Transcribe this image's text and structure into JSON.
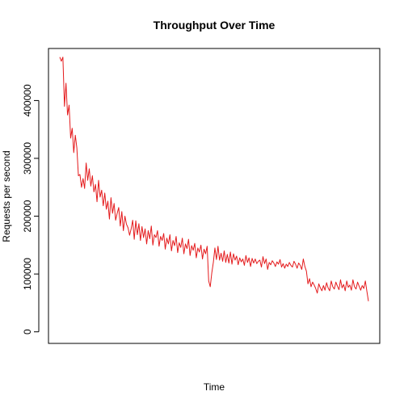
{
  "chart_data": {
    "type": "line",
    "title": "Throughput Over Time",
    "xlabel": "Time",
    "ylabel": "Requests per second",
    "ylim": [
      -20000,
      490000
    ],
    "y_ticks": [
      0,
      100000,
      200000,
      300000,
      400000
    ],
    "y_tick_labels": [
      "0",
      "100000",
      "200000",
      "300000",
      "400000"
    ],
    "x_ticks_shown": false,
    "grid": false,
    "series": [
      {
        "color": "#e41a1c",
        "x": [
          1,
          2,
          3,
          4,
          5,
          6,
          7,
          8,
          9,
          10,
          11,
          12,
          13,
          14,
          15,
          16,
          17,
          18,
          19,
          20,
          21,
          22,
          23,
          24,
          25,
          26,
          27,
          28,
          29,
          30,
          31,
          32,
          33,
          34,
          35,
          36,
          37,
          38,
          39,
          40,
          41,
          42,
          43,
          44,
          45,
          46,
          47,
          48,
          49,
          50,
          51,
          52,
          53,
          54,
          55,
          56,
          57,
          58,
          59,
          60,
          61,
          62,
          63,
          64,
          65,
          66,
          67,
          68,
          69,
          70,
          71,
          72,
          73,
          74,
          75,
          76,
          77,
          78,
          79,
          80,
          81,
          82,
          83,
          84,
          85,
          86,
          87,
          88,
          89,
          90,
          91,
          92,
          93,
          94,
          95,
          96,
          97,
          98,
          99,
          100,
          101,
          102,
          103,
          104,
          105,
          106,
          107,
          108,
          109,
          110,
          111,
          112,
          113,
          114,
          115,
          116,
          117,
          118,
          119,
          120,
          121,
          122,
          123,
          124,
          125,
          126,
          127,
          128,
          129,
          130,
          131,
          132,
          133,
          134,
          135,
          136,
          137,
          138,
          139,
          140,
          141,
          142,
          143,
          144,
          145,
          146,
          147,
          148,
          149,
          150,
          151,
          152,
          153,
          154,
          155,
          156,
          157,
          158,
          159,
          160,
          161,
          162,
          163,
          164,
          165,
          166,
          167,
          168,
          169,
          170,
          171,
          172,
          173,
          174,
          175,
          176,
          177,
          178,
          179,
          180,
          181,
          182,
          183,
          184,
          185,
          186,
          187,
          188,
          189,
          190,
          191,
          192,
          193,
          194,
          195,
          196,
          197,
          198,
          199,
          200
        ],
        "values": [
          475000,
          468000,
          475000,
          390000,
          430000,
          375000,
          392000,
          335000,
          352000,
          310000,
          340000,
          318000,
          270000,
          272000,
          250000,
          265000,
          248000,
          292000,
          262000,
          282000,
          252000,
          270000,
          242000,
          255000,
          225000,
          262000,
          233000,
          245000,
          218000,
          240000,
          212000,
          226000,
          195000,
          232000,
          205000,
          222000,
          193000,
          205000,
          215000,
          183000,
          208000,
          175000,
          200000,
          186000,
          180000,
          167000,
          178000,
          193000,
          160000,
          192000,
          168000,
          187000,
          158000,
          182000,
          163000,
          178000,
          152000,
          175000,
          161000,
          183000,
          150000,
          168000,
          163000,
          175000,
          148000,
          165000,
          158000,
          170000,
          143000,
          162000,
          152000,
          168000,
          140000,
          158000,
          149000,
          165000,
          137000,
          154000,
          146000,
          162000,
          135000,
          152000,
          144000,
          160000,
          132000,
          149000,
          141000,
          153000,
          128000,
          145000,
          138000,
          150000,
          126000,
          143000,
          135000,
          148000,
          88000,
          78000,
          102000,
          120000,
          145000,
          125000,
          148000,
          124000,
          136000,
          122000,
          140000,
          120000,
          134000,
          119000,
          138000,
          117000,
          135000,
          124000,
          131000,
          116000,
          128000,
          121000,
          126000,
          115000,
          132000,
          120000,
          128000,
          113000,
          127000,
          119000,
          126000,
          118000,
          122000,
          124000,
          112000,
          130000,
          118000,
          126000,
          108000,
          120000,
          116000,
          123000,
          119000,
          113000,
          121000,
          117000,
          125000,
          112000,
          118000,
          110000,
          117000,
          113000,
          120000,
          115000,
          112000,
          122000,
          117000,
          110000,
          119000,
          115000,
          108000,
          126000,
          113000,
          105000,
          83000,
          92000,
          78000,
          86000,
          81000,
          75000,
          67000,
          83000,
          76000,
          71000,
          80000,
          72000,
          85000,
          76000,
          71000,
          88000,
          78000,
          74000,
          86000,
          79000,
          73000,
          90000,
          76000,
          82000,
          71000,
          88000,
          77000,
          81000,
          72000,
          90000,
          78000,
          74000,
          86000,
          79000,
          72000,
          80000,
          75000,
          88000,
          70000,
          53000
        ]
      }
    ]
  }
}
